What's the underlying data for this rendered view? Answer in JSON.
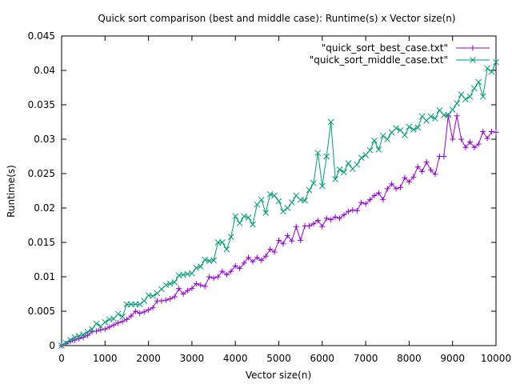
{
  "chart_data": {
    "type": "line",
    "title": "Quick sort comparison (best and middle case): Runtime(s) x Vector size(n)",
    "xlabel": "Vector size(n)",
    "ylabel": "Runtime(s)",
    "xlim": [
      0,
      10000
    ],
    "ylim": [
      0,
      0.045
    ],
    "x_ticks": [
      "0",
      "1000",
      "2000",
      "3000",
      "4000",
      "5000",
      "6000",
      "7000",
      "8000",
      "9000",
      "10000"
    ],
    "y_ticks": [
      "0",
      "0.005",
      "0.01",
      "0.015",
      "0.02",
      "0.025",
      "0.03",
      "0.035",
      "0.04",
      "0.045"
    ],
    "grid": false,
    "legend_position": "top-right",
    "x": [
      0,
      100,
      200,
      300,
      400,
      500,
      600,
      700,
      800,
      900,
      1000,
      1100,
      1200,
      1300,
      1400,
      1500,
      1600,
      1700,
      1800,
      1900,
      2000,
      2100,
      2200,
      2300,
      2400,
      2500,
      2600,
      2700,
      2800,
      2900,
      3000,
      3100,
      3200,
      3300,
      3400,
      3500,
      3600,
      3700,
      3800,
      3900,
      4000,
      4100,
      4200,
      4300,
      4400,
      4500,
      4600,
      4700,
      4800,
      4900,
      5000,
      5100,
      5200,
      5300,
      5400,
      5500,
      5600,
      5700,
      5800,
      5900,
      6000,
      6100,
      6200,
      6300,
      6400,
      6500,
      6600,
      6700,
      6800,
      6900,
      7000,
      7100,
      7200,
      7300,
      7400,
      7500,
      7600,
      7700,
      7800,
      7900,
      8000,
      8100,
      8200,
      8300,
      8400,
      8500,
      8600,
      8700,
      8800,
      8900,
      9000,
      9100,
      9200,
      9300,
      9400,
      9500,
      9600,
      9700,
      9800,
      9900,
      10000
    ],
    "series": [
      {
        "name": "\"quick_sort_best_case.txt\"",
        "color": "#9400d3",
        "marker": "plus",
        "values": [
          0,
          0.0003,
          0.0006,
          0.0008,
          0.001,
          0.0012,
          0.0015,
          0.002,
          0.0021,
          0.0023,
          0.0024,
          0.0027,
          0.003,
          0.0033,
          0.0035,
          0.0038,
          0.0043,
          0.005,
          0.0047,
          0.0049,
          0.0052,
          0.0055,
          0.0065,
          0.0065,
          0.0066,
          0.0068,
          0.0071,
          0.0083,
          0.0075,
          0.008,
          0.0083,
          0.009,
          0.0088,
          0.0086,
          0.01,
          0.0098,
          0.01,
          0.0108,
          0.0103,
          0.0108,
          0.0116,
          0.0112,
          0.012,
          0.0128,
          0.0122,
          0.0128,
          0.0124,
          0.013,
          0.014,
          0.0136,
          0.0153,
          0.0148,
          0.016,
          0.0152,
          0.0173,
          0.0153,
          0.0174,
          0.0174,
          0.0177,
          0.0182,
          0.0173,
          0.0185,
          0.0183,
          0.0187,
          0.0185,
          0.019,
          0.0195,
          0.0197,
          0.0196,
          0.0208,
          0.0206,
          0.0212,
          0.0218,
          0.0222,
          0.0212,
          0.0228,
          0.0235,
          0.0228,
          0.023,
          0.0244,
          0.0238,
          0.0245,
          0.026,
          0.0253,
          0.0267,
          0.0255,
          0.0249,
          0.0275,
          0.0275,
          0.0334,
          0.03,
          0.0334,
          0.03,
          0.0288,
          0.0296,
          0.0288,
          0.0293,
          0.0311,
          0.0301,
          0.0311,
          0.031
        ]
      },
      {
        "name": "\"quick_sort_middle_case.txt\"",
        "color": "#009e73",
        "marker": "cross",
        "values": [
          0,
          0.0004,
          0.0008,
          0.0012,
          0.0014,
          0.0016,
          0.002,
          0.0024,
          0.0032,
          0.0028,
          0.0034,
          0.0038,
          0.0039,
          0.0046,
          0.0042,
          0.006,
          0.006,
          0.006,
          0.006,
          0.0065,
          0.0073,
          0.0072,
          0.0076,
          0.0082,
          0.0088,
          0.009,
          0.0092,
          0.0102,
          0.0103,
          0.0104,
          0.0105,
          0.0113,
          0.0115,
          0.0125,
          0.0123,
          0.0124,
          0.015,
          0.015,
          0.014,
          0.0158,
          0.0188,
          0.0178,
          0.0188,
          0.0186,
          0.0176,
          0.0205,
          0.0212,
          0.0193,
          0.022,
          0.0218,
          0.021,
          0.0195,
          0.02,
          0.0208,
          0.0218,
          0.0212,
          0.0211,
          0.0226,
          0.0236,
          0.028,
          0.0232,
          0.0275,
          0.0325,
          0.0242,
          0.0256,
          0.0252,
          0.0265,
          0.0257,
          0.0263,
          0.0273,
          0.0277,
          0.0284,
          0.0298,
          0.0285,
          0.0305,
          0.03,
          0.031,
          0.0316,
          0.0313,
          0.0306,
          0.0318,
          0.0314,
          0.0317,
          0.0333,
          0.0327,
          0.0333,
          0.033,
          0.0342,
          0.0335,
          0.0335,
          0.0343,
          0.0352,
          0.0365,
          0.0358,
          0.0362,
          0.0374,
          0.0383,
          0.0362,
          0.0403,
          0.0398,
          0.0412
        ]
      }
    ]
  }
}
